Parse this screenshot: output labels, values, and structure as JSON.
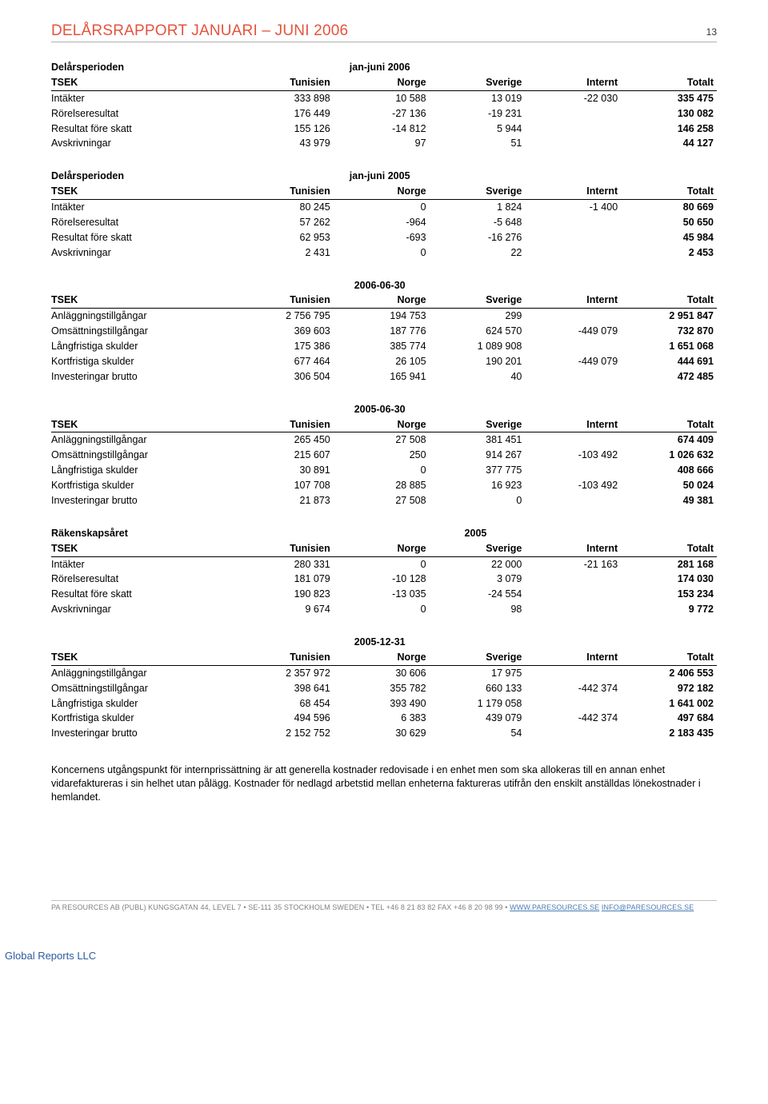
{
  "header": {
    "title": "DELÅRSRAPPORT JANUARI – JUNI 2006",
    "page_number": "13"
  },
  "columns": [
    "TSEK",
    "Tunisien",
    "Norge",
    "Sverige",
    "Internt",
    "Totalt"
  ],
  "col_widths_pct": [
    28,
    14.4,
    14.4,
    14.4,
    14.4,
    14.4
  ],
  "text_align": {
    "label": "left",
    "numbers": "right"
  },
  "font": {
    "family": "Arial",
    "size_pt": 9.5,
    "header_size_pt": 14,
    "header_color": "#e5533d"
  },
  "colors": {
    "text": "#000000",
    "header_rule": "#b0b0b0",
    "footer_text": "#808080",
    "link": "#4a7db5",
    "bg": "#ffffff",
    "global_reports": "#2c5aa0",
    "row_rule": "#000000"
  },
  "tables": [
    {
      "period_left": "Delårsperioden",
      "period_right": "jan-juni 2006",
      "rows": [
        [
          "Intäkter",
          "333 898",
          "10 588",
          "13 019",
          "-22 030",
          "335 475"
        ],
        [
          "Rörelseresultat",
          "176 449",
          "-27 136",
          "-19 231",
          "",
          "130 082"
        ],
        [
          "Resultat före skatt",
          "155 126",
          "-14 812",
          "5 944",
          "",
          "146 258"
        ],
        [
          "Avskrivningar",
          "43 979",
          "97",
          "51",
          "",
          "44 127"
        ]
      ]
    },
    {
      "period_left": "Delårsperioden",
      "period_right": "jan-juni 2005",
      "rows": [
        [
          "Intäkter",
          "80 245",
          "0",
          "1 824",
          "-1 400",
          "80 669"
        ],
        [
          "Rörelseresultat",
          "57 262",
          "-964",
          "-5 648",
          "",
          "50 650"
        ],
        [
          "Resultat före skatt",
          "62 953",
          "-693",
          "-16 276",
          "",
          "45 984"
        ],
        [
          "Avskrivningar",
          "2 431",
          "0",
          "22",
          "",
          "2 453"
        ]
      ]
    },
    {
      "period_left": "",
      "period_right": "2006-06-30",
      "rows": [
        [
          "Anläggningstillgångar",
          "2 756 795",
          "194 753",
          "299",
          "",
          "2 951 847"
        ],
        [
          "Omsättningstillgångar",
          "369 603",
          "187 776",
          "624 570",
          "-449 079",
          "732 870"
        ],
        [
          "Långfristiga skulder",
          "175 386",
          "385 774",
          "1 089 908",
          "",
          "1 651 068"
        ],
        [
          "Kortfristiga skulder",
          "677 464",
          "26 105",
          "190 201",
          "-449 079",
          "444 691"
        ],
        [
          "Investeringar brutto",
          "306 504",
          "165 941",
          "40",
          "",
          "472 485"
        ]
      ]
    },
    {
      "period_left": "",
      "period_right": "2005-06-30",
      "rows": [
        [
          "Anläggningstillgångar",
          "265 450",
          "27 508",
          "381 451",
          "",
          "674 409"
        ],
        [
          "Omsättningstillgångar",
          "215 607",
          "250",
          "914 267",
          "-103 492",
          "1 026 632"
        ],
        [
          "Långfristiga skulder",
          "30 891",
          "0",
          "377 775",
          "",
          "408 666"
        ],
        [
          "Kortfristiga skulder",
          "107 708",
          "28 885",
          "16 923",
          "-103 492",
          "50 024"
        ],
        [
          "Investeringar brutto",
          "21 873",
          "27 508",
          "0",
          "",
          "49 381"
        ]
      ]
    },
    {
      "period_left": "Räkenskapsåret",
      "period_right": "2005",
      "period_right_col": 3,
      "rows": [
        [
          "Intäkter",
          "280 331",
          "0",
          "22 000",
          "-21 163",
          "281 168"
        ],
        [
          "Rörelseresultat",
          "181 079",
          "-10 128",
          "3 079",
          "",
          "174 030"
        ],
        [
          "Resultat före skatt",
          "190 823",
          "-13 035",
          "-24 554",
          "",
          "153 234"
        ],
        [
          "Avskrivningar",
          "9 674",
          "0",
          "98",
          "",
          "9 772"
        ]
      ]
    },
    {
      "period_left": "",
      "period_right": "2005-12-31",
      "rows": [
        [
          "Anläggningstillgångar",
          "2 357 972",
          "30 606",
          "17 975",
          "",
          "2 406 553"
        ],
        [
          "Omsättningstillgångar",
          "398 641",
          "355 782",
          "660 133",
          "-442 374",
          "972 182"
        ],
        [
          "Långfristiga skulder",
          "68 454",
          "393 490",
          "1 179 058",
          "",
          "1 641 002"
        ],
        [
          "Kortfristiga skulder",
          "494 596",
          "6 383",
          "439 079",
          "-442 374",
          "497 684"
        ],
        [
          "Investeringar brutto",
          "2 152 752",
          "30 629",
          "54",
          "",
          "2 183 435"
        ]
      ]
    }
  ],
  "body_text": "Koncernens utgångspunkt för internprissättning är att generella kostnader redovisade i en enhet men som ska allokeras till en annan enhet vidarefaktureras i sin helhet utan pålägg. Kostnader för nedlagd arbetstid mellan enheterna faktureras utifrån den enskilt anställdas lönekostnader i hemlandet.",
  "footer": {
    "text_prefix": "PA RESOURCES AB (PUBL) KUNGSGATAN 44, LEVEL 7 ",
    "bullet": "•",
    "text_mid": " SE-111 35 STOCKHOLM SWEDEN ",
    "text_tel": " TEL +46 8 21 83 82 FAX +46 8 20 98 99 ",
    "link1": "WWW.PARESOURCES.SE",
    "sep": "  ",
    "link2": "INFO@PARESOURCES.SE"
  },
  "global_reports": "Global Reports LLC"
}
